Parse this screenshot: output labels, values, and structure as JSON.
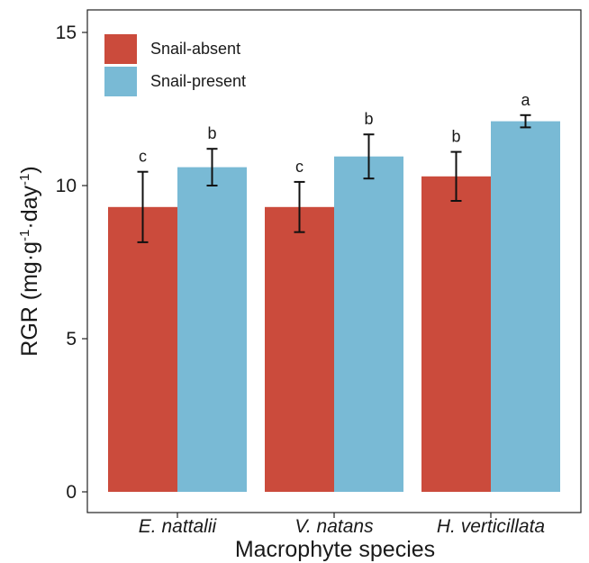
{
  "chart_data": {
    "type": "bar",
    "xlabel": "Macrophyte species",
    "ylabel": {
      "base": "RGR (mg·g",
      "sup1": "-1",
      "mid": "·day",
      "sup2": "-1",
      "end": ")"
    },
    "ylim": [
      0,
      15.5
    ],
    "yticks": [
      0,
      5,
      10,
      15
    ],
    "grid": false,
    "legend_position": "top-left",
    "categories": [
      "E. nattalii",
      "V. natans",
      "H. verticillata"
    ],
    "series": [
      {
        "name": "Snail-absent",
        "color": "#cb4b3c",
        "values": [
          9.3,
          9.3,
          10.3
        ],
        "error": [
          1.15,
          0.82,
          0.8
        ],
        "letters": [
          "c",
          "c",
          "b"
        ]
      },
      {
        "name": "Snail-present",
        "color": "#79bad5",
        "values": [
          10.6,
          10.95,
          12.1
        ],
        "error": [
          0.6,
          0.72,
          0.2
        ],
        "letters": [
          "b",
          "b",
          "a"
        ]
      }
    ]
  }
}
